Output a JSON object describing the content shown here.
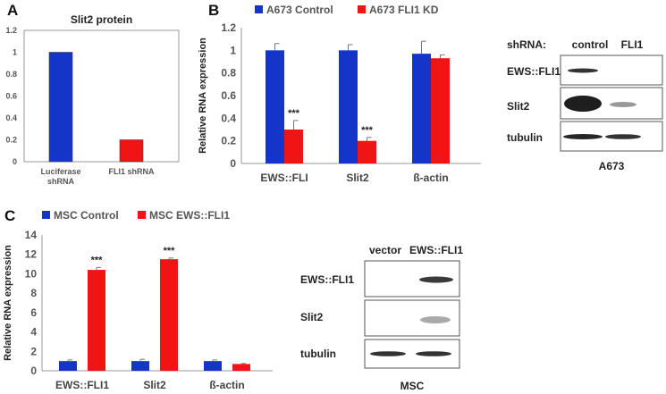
{
  "panel_labels": {
    "a": "A",
    "b": "B",
    "c": "C"
  },
  "chart_data": [
    {
      "type": "bar",
      "panel": "A",
      "title": "Slit2 protein",
      "categories": [
        "Luciferase shRNA",
        "FLI1 shRNA"
      ],
      "category_lines": [
        [
          "Luciferase",
          "shRNA"
        ],
        [
          "FLI1 shRNA"
        ]
      ],
      "values": [
        1.0,
        0.2
      ],
      "colors": [
        "#1535c9",
        "#f01414"
      ],
      "ylim": [
        0,
        1.2
      ],
      "yticks": [
        "0",
        "0.2",
        "0.4",
        "0.6",
        "0.8",
        "1",
        "1.2"
      ],
      "xlabel": "",
      "ylabel": "",
      "grid": false
    },
    {
      "type": "bar",
      "panel": "B",
      "categories": [
        "EWS::FLI",
        "Slit2",
        "ß-actin"
      ],
      "series": [
        {
          "name": "A673 Control",
          "color": "#1535c9",
          "values": [
            1.0,
            1.0,
            0.97
          ],
          "errors": [
            0.06,
            0.05,
            0.11
          ]
        },
        {
          "name": "A673 FLI1 KD",
          "color": "#f01414",
          "values": [
            0.3,
            0.2,
            0.93
          ],
          "errors": [
            0.08,
            0.03,
            0.03
          ]
        }
      ],
      "significance": [
        "***",
        "***",
        ""
      ],
      "ylim": [
        0,
        1.2
      ],
      "yticks": [
        "0",
        "0.2",
        "0.4",
        "0.6",
        "0.8",
        "1",
        "1.2"
      ],
      "xlabel": "",
      "ylabel": "Relative RNA expression",
      "legend": "top",
      "grid": false
    },
    {
      "type": "bar",
      "panel": "C",
      "categories": [
        "EWS::FLI1",
        "Slit2",
        "ß-actin"
      ],
      "series": [
        {
          "name": "MSC Control",
          "color": "#1535c9",
          "values": [
            1.0,
            1.0,
            1.0
          ],
          "errors": [
            0.12,
            0.18,
            0.12
          ]
        },
        {
          "name": "MSC EWS::FLI1",
          "color": "#f01414",
          "values": [
            10.4,
            11.5,
            0.7
          ],
          "errors": [
            0.25,
            0.12,
            0.05
          ]
        }
      ],
      "significance": [
        "***",
        "***",
        ""
      ],
      "ylim": [
        0,
        14
      ],
      "yticks": [
        "0",
        "2",
        "4",
        "6",
        "8",
        "10",
        "12",
        "14"
      ],
      "xlabel": "",
      "ylabel": "Relative RNA expression",
      "legend": "top",
      "grid": false
    }
  ],
  "blot_b": {
    "header_label": "shRNA:",
    "lanes": [
      "control",
      "FLI1"
    ],
    "rows": [
      "EWS::FLI1",
      "Slit2",
      "tubulin"
    ],
    "caption": "A673"
  },
  "blot_c": {
    "lanes": [
      "vector",
      "EWS::FLI1"
    ],
    "rows": [
      "EWS::FLI1",
      "Slit2",
      "tubulin"
    ],
    "caption": "MSC"
  }
}
